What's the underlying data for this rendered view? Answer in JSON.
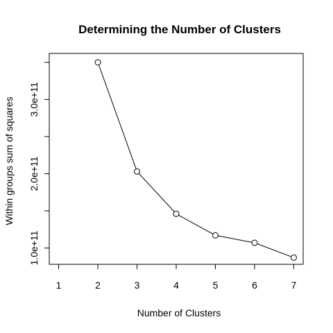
{
  "chart_data": {
    "type": "line",
    "title": "Determining the Number of Clusters",
    "xlabel": "Number of Clusters",
    "ylabel": "Within groups sum of squares",
    "x": [
      1,
      2,
      3,
      4,
      5,
      6,
      7
    ],
    "series": [
      {
        "values": [
          null,
          350000000000,
          203000000000,
          146000000000,
          117000000000,
          107000000000,
          87000000000
        ]
      }
    ],
    "x_ticks": [
      1,
      2,
      3,
      4,
      5,
      6,
      7
    ],
    "x_tick_labels": [
      "1",
      "2",
      "3",
      "4",
      "5",
      "6",
      "7"
    ],
    "y_ticks": [
      100000000000,
      150000000000,
      200000000000,
      250000000000,
      300000000000,
      350000000000
    ],
    "y_tick_labels": [
      "1.0e+11",
      "",
      "2.0e+11",
      "",
      "3.0e+11",
      ""
    ],
    "xlim": [
      0.76,
      7.24
    ],
    "ylim": [
      78000000000,
      362000000000
    ],
    "grid": false,
    "marker": "open-circle",
    "line_color": "#000000"
  }
}
